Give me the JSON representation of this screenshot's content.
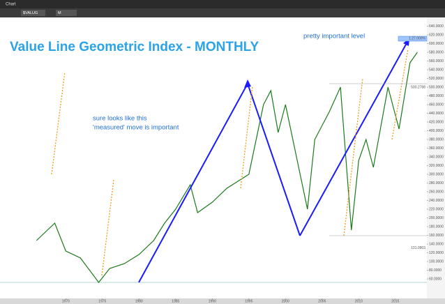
{
  "toolbar": {
    "window": "Chart",
    "symbol": "$VALUG",
    "interval": "M"
  },
  "chart_data": {
    "type": "line",
    "title": "Value Line Geometric Index - MONTHLY",
    "annotations": [
      "pretty important level",
      "sure looks like this",
      "'measured' move is important"
    ],
    "level_labels": [
      {
        "value": 612,
        "label": "1.27.000%"
      },
      {
        "value": 500,
        "label": "500.2788"
      },
      {
        "value": 131,
        "label": "131.0903"
      }
    ],
    "x": [
      1966,
      1968.5,
      1970,
      1972,
      1974.5,
      1976,
      1978,
      1980,
      1982,
      1983.5,
      1985,
      1987,
      1988,
      1990,
      1992,
      1995,
      1997,
      1998,
      1999,
      2000,
      2002,
      2003,
      2004,
      2006,
      2007.5,
      2009,
      2010,
      2011,
      2012,
      2014,
      2015.5,
      2017,
      2018
    ],
    "series": [
      {
        "name": "$VALUG",
        "color": "#1a7a1a",
        "values": [
          148,
          188,
          124,
          108,
          52,
          84,
          95,
          116,
          148,
          188,
          220,
          276,
          212,
          236,
          268,
          300,
          460,
          492,
          396,
          460,
          300,
          220,
          380,
          444,
          500,
          172,
          332,
          380,
          316,
          500,
          404,
          556,
          580
        ]
      }
    ],
    "xlim": [
      1961.5,
      2019.3
    ],
    "ylim": [
      20,
      660
    ],
    "xticks": [
      1970,
      1975,
      1980,
      1985,
      1990,
      1995,
      2000,
      2005,
      2010,
      2015
    ],
    "yticks": [
      {
        "value": 60,
        "label": "60.0000"
      },
      {
        "value": 80,
        "label": "80.0000"
      },
      {
        "value": 100,
        "label": "100.0000"
      },
      {
        "value": 120,
        "label": "120.0000"
      },
      {
        "value": 140,
        "label": "140.0000"
      },
      {
        "value": 160,
        "label": "160.0000"
      },
      {
        "value": 180,
        "label": "180.0000"
      },
      {
        "value": 200,
        "label": "200.0000"
      },
      {
        "value": 220,
        "label": "220.0000"
      },
      {
        "value": 240,
        "label": "240.0000"
      },
      {
        "value": 260,
        "label": "260.0000"
      },
      {
        "value": 280,
        "label": "280.0000"
      },
      {
        "value": 300,
        "label": "300.0000"
      },
      {
        "value": 320,
        "label": "320.0000"
      },
      {
        "value": 340,
        "label": "340.0000"
      },
      {
        "value": 360,
        "label": "360.0000"
      },
      {
        "value": 380,
        "label": "380.0000"
      },
      {
        "value": 400,
        "label": "400.0000"
      },
      {
        "value": 420,
        "label": "420.0000"
      },
      {
        "value": 440,
        "label": "440.0000"
      },
      {
        "value": 460,
        "label": "460.0000"
      },
      {
        "value": 480,
        "label": "480.0000"
      },
      {
        "value": 500,
        "label": "500.0000"
      },
      {
        "value": 520,
        "label": "520.0000"
      },
      {
        "value": 540,
        "label": "540.0000"
      },
      {
        "value": 560,
        "label": "560.0000"
      },
      {
        "value": 580,
        "label": "580.0000"
      },
      {
        "value": 600,
        "label": "600.0000"
      },
      {
        "value": 620,
        "label": "620.0000"
      },
      {
        "value": 640,
        "label": "640.0000"
      }
    ]
  }
}
